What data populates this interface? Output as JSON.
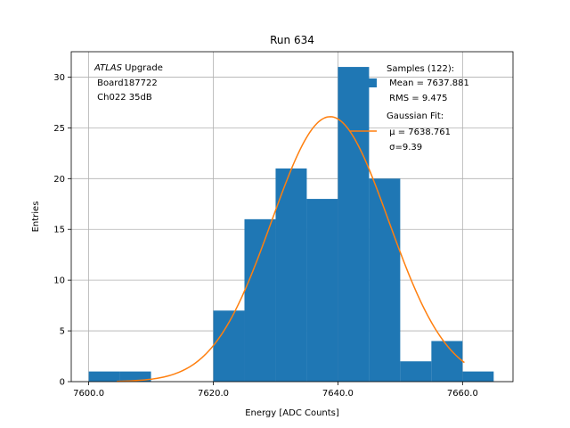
{
  "chart_data": {
    "type": "bar",
    "title": "Run 634",
    "xlabel": "Energy [ADC Counts]",
    "ylabel": "Entries",
    "xlim": [
      7597.2,
      7668.1
    ],
    "ylim": [
      0,
      32.5
    ],
    "grid": true,
    "xticks": [
      7600,
      7620,
      7640,
      7660
    ],
    "xtick_labels": [
      "7600.0",
      "7620.0",
      "7640.0",
      "7660.0"
    ],
    "yticks": [
      0,
      5,
      10,
      15,
      20,
      25,
      30
    ],
    "ytick_labels": [
      "0",
      "5",
      "10",
      "15",
      "20",
      "25",
      "30"
    ],
    "bins": [
      {
        "x0": 7600.0,
        "x1": 7605.0,
        "count": 1
      },
      {
        "x0": 7605.0,
        "x1": 7610.0,
        "count": 1
      },
      {
        "x0": 7610.0,
        "x1": 7615.0,
        "count": 0
      },
      {
        "x0": 7615.0,
        "x1": 7620.0,
        "count": 0
      },
      {
        "x0": 7620.0,
        "x1": 7625.0,
        "count": 7
      },
      {
        "x0": 7625.0,
        "x1": 7630.0,
        "count": 16
      },
      {
        "x0": 7630.0,
        "x1": 7635.0,
        "count": 21
      },
      {
        "x0": 7635.0,
        "x1": 7640.0,
        "count": 18
      },
      {
        "x0": 7640.0,
        "x1": 7645.0,
        "count": 31
      },
      {
        "x0": 7645.0,
        "x1": 7650.0,
        "count": 20
      },
      {
        "x0": 7650.0,
        "x1": 7655.0,
        "count": 2
      },
      {
        "x0": 7655.0,
        "x1": 7660.0,
        "count": 4
      },
      {
        "x0": 7660.0,
        "x1": 7665.0,
        "count": 1
      }
    ],
    "fit": {
      "type": "gaussian",
      "mu": 7638.761,
      "sigma": 9.39,
      "amplitude": 26.1,
      "x_range": [
        7604.5,
        7660.3
      ]
    },
    "colors": {
      "bars": "#1f77b4",
      "fit": "#ff7f0e",
      "grid": "#b0b0b0"
    },
    "annotation": {
      "line1_italic": "ATLAS",
      "line1_rest": " Upgrade",
      "line2": " Board187722",
      "line3": " Ch022 35dB"
    },
    "legend": {
      "placement": "upper right",
      "samples": [
        "Samples (122):",
        " Mean = 7637.881",
        " RMS = 9.475"
      ],
      "fit": [
        "Gaussian Fit:",
        " μ = 7638.761",
        " σ=9.39"
      ]
    }
  }
}
